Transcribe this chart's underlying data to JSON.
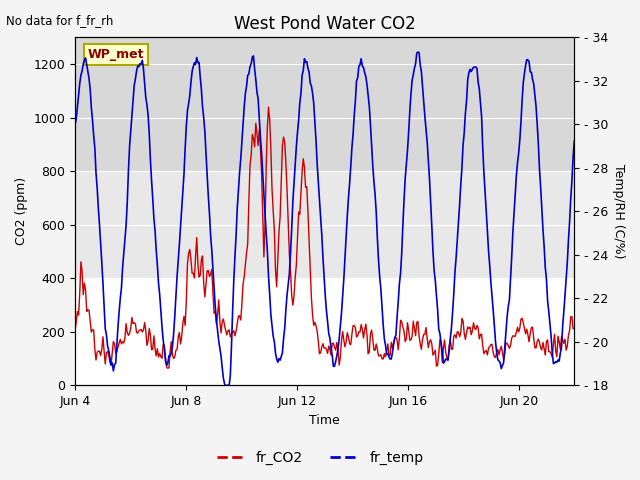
{
  "title": "West Pond Water CO2",
  "subtitle": "No data for f_fr_rh",
  "xlabel": "Time",
  "ylabel_left": "CO2 (ppm)",
  "ylabel_right": "Temp/RH (C/%)",
  "legend_label": "WP_met",
  "series_labels": [
    "fr_CO2",
    "fr_temp"
  ],
  "series_colors": [
    "#cc0000",
    "#0000cc"
  ],
  "x_ticks_positions": [
    0,
    4,
    8,
    12,
    16
  ],
  "x_ticks_labels": [
    "Jun 4",
    "Jun 8",
    "Jun 12",
    "Jun 16",
    "Jun 20"
  ],
  "ylim_left": [
    0,
    1300
  ],
  "ylim_right": [
    18,
    34
  ],
  "yticks_left": [
    0,
    200,
    400,
    600,
    800,
    1000,
    1200
  ],
  "yticks_right": [
    18,
    20,
    22,
    24,
    26,
    28,
    30,
    32,
    34
  ],
  "plot_bg_color": "#ffffff",
  "shaded_band_low": [
    400,
    800
  ],
  "shaded_band_high": [
    800,
    1300
  ],
  "title_fontsize": 12,
  "label_fontsize": 9,
  "tick_fontsize": 9,
  "n_days": 18
}
